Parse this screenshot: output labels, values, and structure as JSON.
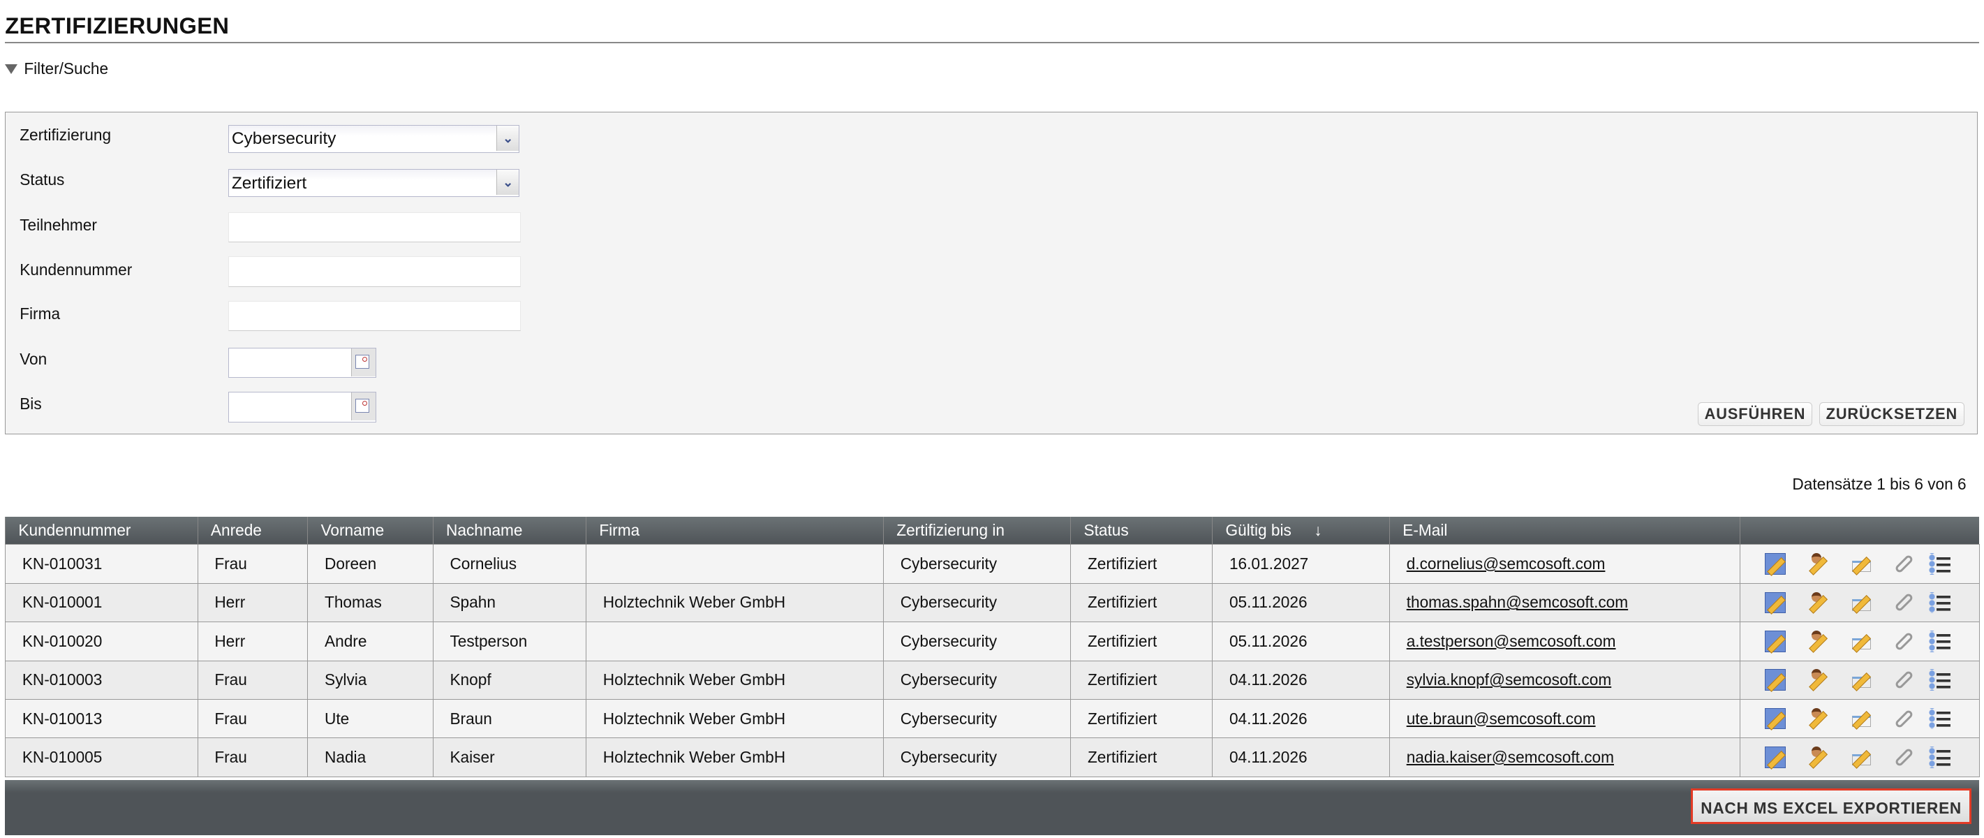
{
  "page": {
    "title": "ZERTIFIZIERUNGEN",
    "filter_toggle": "Filter/Suche"
  },
  "filter": {
    "zertifizierung": {
      "label": "Zertifizierung",
      "value": "Cybersecurity"
    },
    "status": {
      "label": "Status",
      "value": "Zertifiziert"
    },
    "teilnehmer": {
      "label": "Teilnehmer",
      "value": ""
    },
    "kundennummer": {
      "label": "Kundennummer",
      "value": ""
    },
    "firma": {
      "label": "Firma",
      "value": ""
    },
    "von": {
      "label": "Von",
      "value": ""
    },
    "bis": {
      "label": "Bis",
      "value": ""
    },
    "run_label": "AUSFÜHREN",
    "reset_label": "ZURÜCKSETZEN"
  },
  "record_count": "Datensätze 1 bis 6 von 6",
  "table": {
    "columns": [
      "Kundennummer",
      "Anrede",
      "Vorname",
      "Nachname",
      "Firma",
      "Zertifizierung in",
      "Status",
      "Gültig bis",
      "E-Mail",
      ""
    ],
    "sort": {
      "column": "Gültig bis",
      "direction": "descending",
      "glyph": "↓"
    },
    "row_icons": [
      "edit-certificate-icon",
      "edit-participant-icon",
      "edit-order-icon",
      "attachment-icon",
      "details-list-icon"
    ],
    "rows": [
      [
        "KN-010031",
        "Frau",
        "Doreen",
        "Cornelius",
        "",
        "Cybersecurity",
        "Zertifiziert",
        "16.01.2027",
        "d.cornelius@semcosoft.com"
      ],
      [
        "KN-010001",
        "Herr",
        "Thomas",
        "Spahn",
        "Holztechnik Weber GmbH",
        "Cybersecurity",
        "Zertifiziert",
        "05.11.2026",
        "thomas.spahn@semcosoft.com"
      ],
      [
        "KN-010020",
        "Herr",
        "Andre",
        "Testperson",
        "",
        "Cybersecurity",
        "Zertifiziert",
        "05.11.2026",
        "a.testperson@semcosoft.com"
      ],
      [
        "KN-010003",
        "Frau",
        "Sylvia",
        "Knopf",
        "Holztechnik Weber GmbH",
        "Cybersecurity",
        "Zertifiziert",
        "04.11.2026",
        "sylvia.knopf@semcosoft.com"
      ],
      [
        "KN-010013",
        "Frau",
        "Ute",
        "Braun",
        "Holztechnik Weber GmbH",
        "Cybersecurity",
        "Zertifiziert",
        "04.11.2026",
        "ute.braun@semcosoft.com"
      ],
      [
        "KN-010005",
        "Frau",
        "Nadia",
        "Kaiser",
        "Holztechnik Weber GmbH",
        "Cybersecurity",
        "Zertifiziert",
        "04.11.2026",
        "nadia.kaiser@semcosoft.com"
      ]
    ]
  },
  "export_label": "NACH MS EXCEL EXPORTIEREN",
  "colors": {
    "header_bg": "#4f5458",
    "highlight": "#e23b26"
  }
}
